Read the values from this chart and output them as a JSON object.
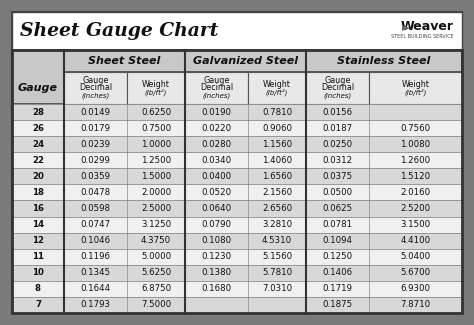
{
  "title": "Sheet Gauge Chart",
  "bg_outer": "#7a7a7a",
  "bg_inner": "#f0f0f0",
  "title_bg": "#ffffff",
  "header1_bg": "#c8c8c8",
  "header2_bg": "#ffffff",
  "row_odd": "#d8d8d8",
  "row_even": "#f0f0f0",
  "gauges": [
    28,
    26,
    24,
    22,
    20,
    18,
    16,
    14,
    12,
    11,
    10,
    8,
    7
  ],
  "sheet_steel_dec": [
    "0.0149",
    "0.0179",
    "0.0239",
    "0.0299",
    "0.0359",
    "0.0478",
    "0.0598",
    "0.0747",
    "0.1046",
    "0.1196",
    "0.1345",
    "0.1644",
    "0.1793"
  ],
  "sheet_steel_wt": [
    "0.6250",
    "0.7500",
    "1.0000",
    "1.2500",
    "1.5000",
    "2.0000",
    "2.5000",
    "3.1250",
    "4.3750",
    "5.0000",
    "5.6250",
    "6.8750",
    "7.5000"
  ],
  "galv_dec": [
    "0.0190",
    "0.0220",
    "0.0280",
    "0.0340",
    "0.0400",
    "0.0520",
    "0.0640",
    "0.0790",
    "0.1080",
    "0.1230",
    "0.1380",
    "0.1680",
    ""
  ],
  "galv_wt": [
    "0.7810",
    "0.9060",
    "1.1560",
    "1.4060",
    "1.6560",
    "2.1560",
    "2.6560",
    "3.2810",
    "4.5310",
    "5.1560",
    "5.7810",
    "7.0310",
    ""
  ],
  "sst_dec": [
    "0.0156",
    "0.0187",
    "0.0250",
    "0.0312",
    "0.0375",
    "0.0500",
    "0.0625",
    "0.0781",
    "0.1094",
    "0.1250",
    "0.1406",
    "0.1719",
    "0.1875"
  ],
  "sst_wt": [
    "",
    "0.7560",
    "1.0080",
    "1.2600",
    "1.5120",
    "2.0160",
    "2.5200",
    "3.1500",
    "4.4100",
    "5.0400",
    "5.6700",
    "6.9300",
    "7.8710"
  ],
  "border_lw": 2.5,
  "cell_lw": 0.7
}
